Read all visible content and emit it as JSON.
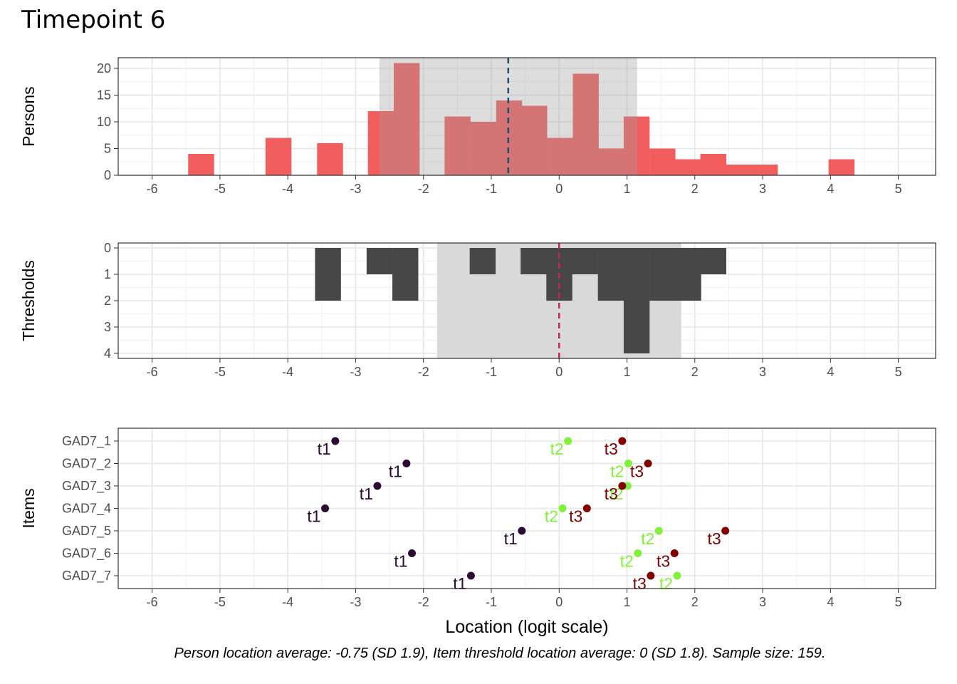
{
  "title": "Timepoint 6",
  "caption": "Person location average: -0.75 (SD 1.9), Item threshold location average: 0 (SD 1.8). Sample size: 159.",
  "colors": {
    "persons_bar": "#f25e5e",
    "persons_bar_in_band": "#d35555",
    "thresholds_bar": "#474747",
    "band": "#d9d9d9",
    "persons_mean_line": "#1f4e6b",
    "thresholds_mean_line": "#c2265a",
    "t1": "#2a0c33",
    "t2": "#80f23a",
    "t3": "#800000"
  },
  "chart_data": [
    {
      "type": "bar",
      "panel": "persons",
      "ylabel": "Persons",
      "xlim": [
        -6.5,
        5.55
      ],
      "ylim": [
        0,
        22
      ],
      "x_ticks": [
        -6,
        -5,
        -4,
        -3,
        -2,
        -1,
        0,
        1,
        2,
        3,
        4,
        5
      ],
      "y_ticks": [
        0,
        5,
        10,
        15,
        20
      ],
      "bin_width": 0.377,
      "bins": [
        {
          "x": -5.28,
          "count": 4
        },
        {
          "x": -4.14,
          "count": 7
        },
        {
          "x": -3.38,
          "count": 6
        },
        {
          "x": -2.63,
          "count": 12
        },
        {
          "x": -2.25,
          "count": 21
        },
        {
          "x": -1.5,
          "count": 11
        },
        {
          "x": -1.12,
          "count": 10
        },
        {
          "x": -0.74,
          "count": 14
        },
        {
          "x": -0.37,
          "count": 13
        },
        {
          "x": 0.01,
          "count": 7
        },
        {
          "x": 0.39,
          "count": 19
        },
        {
          "x": 0.76,
          "count": 5
        },
        {
          "x": 1.14,
          "count": 11
        },
        {
          "x": 1.52,
          "count": 5
        },
        {
          "x": 1.9,
          "count": 3
        },
        {
          "x": 2.27,
          "count": 4
        },
        {
          "x": 2.65,
          "count": 2
        },
        {
          "x": 3.03,
          "count": 2
        },
        {
          "x": 4.16,
          "count": 3
        }
      ],
      "mean": -0.75,
      "band": [
        -2.65,
        1.15
      ]
    },
    {
      "type": "bar",
      "panel": "thresholds",
      "ylabel": "Thresholds",
      "xlim": [
        -6.5,
        5.55
      ],
      "ylim": [
        0,
        4
      ],
      "y_reversed": true,
      "x_ticks": [
        -6,
        -5,
        -4,
        -3,
        -2,
        -1,
        0,
        1,
        2,
        3,
        4,
        5
      ],
      "y_ticks": [
        0,
        1,
        2,
        3,
        4
      ],
      "bin_width": 0.377,
      "bins": [
        {
          "x": -3.41,
          "count": 2
        },
        {
          "x": -2.65,
          "count": 1
        },
        {
          "x": -2.27,
          "count": 2
        },
        {
          "x": -1.13,
          "count": 1
        },
        {
          "x": -0.38,
          "count": 1
        },
        {
          "x": 0.0,
          "count": 2
        },
        {
          "x": 0.38,
          "count": 1
        },
        {
          "x": 0.76,
          "count": 2
        },
        {
          "x": 1.14,
          "count": 4
        },
        {
          "x": 1.52,
          "count": 2
        },
        {
          "x": 1.9,
          "count": 2
        },
        {
          "x": 2.27,
          "count": 1
        }
      ],
      "mean": 0,
      "band": [
        -1.8,
        1.8
      ]
    },
    {
      "type": "scatter",
      "panel": "items",
      "ylabel": "Items",
      "xlabel": "Location (logit scale)",
      "xlim": [
        -6.5,
        5.55
      ],
      "x_ticks": [
        -6,
        -5,
        -4,
        -3,
        -2,
        -1,
        0,
        1,
        2,
        3,
        4,
        5
      ],
      "items": [
        "GAD7_1",
        "GAD7_2",
        "GAD7_3",
        "GAD7_4",
        "GAD7_5",
        "GAD7_6",
        "GAD7_7"
      ],
      "series": [
        {
          "name": "t1",
          "values": [
            -3.3,
            -2.25,
            -2.68,
            -3.45,
            -0.55,
            -2.17,
            -1.3
          ]
        },
        {
          "name": "t2",
          "values": [
            0.13,
            1.02,
            1.01,
            0.05,
            1.47,
            1.16,
            1.74
          ]
        },
        {
          "name": "t3",
          "values": [
            0.93,
            1.31,
            0.93,
            0.41,
            2.45,
            1.7,
            1.35
          ]
        }
      ]
    }
  ]
}
